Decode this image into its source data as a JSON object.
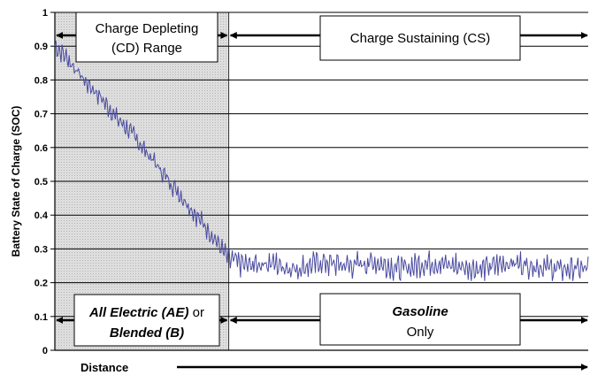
{
  "chart_data": {
    "type": "line",
    "ylabel": "Battery State of Charge (SOC)",
    "xlabel": "Distance",
    "ylim": [
      0,
      1
    ],
    "yticks": [
      "0",
      "0.1",
      "0.2",
      "0.3",
      "0.4",
      "0.5",
      "0.6",
      "0.7",
      "0.8",
      "0.9",
      "1"
    ],
    "grid": "horizontal",
    "x_range": [
      0,
      100
    ],
    "cd_end_x": 32.6,
    "series": [
      {
        "color": "#4a4aa0",
        "x": [
          0,
          2,
          4,
          6,
          8,
          10,
          12,
          14,
          16,
          18,
          20,
          22,
          24,
          26,
          28,
          30,
          32.6,
          36,
          40,
          45,
          50,
          55,
          60,
          65,
          70,
          75,
          80,
          85,
          90,
          95,
          100
        ],
        "y": [
          0.9,
          0.87,
          0.83,
          0.79,
          0.76,
          0.72,
          0.68,
          0.65,
          0.61,
          0.57,
          0.53,
          0.49,
          0.45,
          0.41,
          0.37,
          0.33,
          0.27,
          0.25,
          0.26,
          0.24,
          0.26,
          0.25,
          0.26,
          0.24,
          0.26,
          0.25,
          0.24,
          0.26,
          0.25,
          0.24,
          0.24
        ]
      }
    ],
    "annotations": {
      "cd_range": [
        "Charge Depleting",
        "(CD) Range"
      ],
      "cs": "Charge Sustaining (CS)",
      "ae_line1": "All Electric (AE)",
      "ae_or": " or",
      "ae_line2": "Blended (B)",
      "gas_line1": "Gasoline",
      "gas_line2": "Only"
    }
  }
}
